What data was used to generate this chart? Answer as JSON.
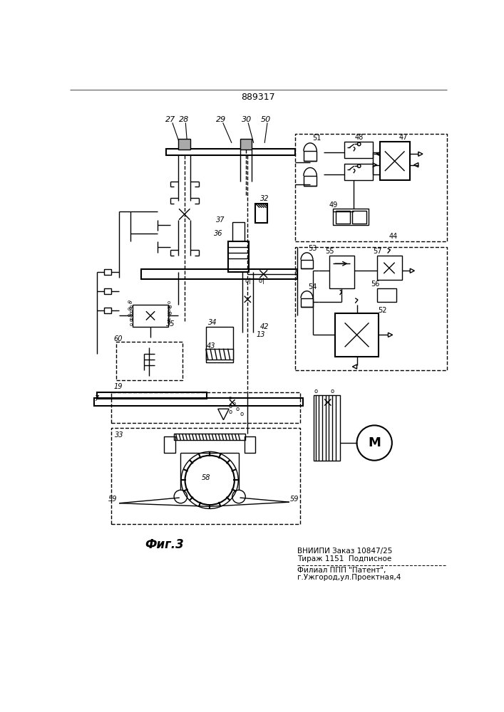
{
  "title": "889317",
  "fig_label": "Фиг.3",
  "bottom_text_line1": "ВНИИПИ Заказ 10847/25",
  "bottom_text_line2": "Тираж 1151  Подписное",
  "bottom_text_line3": "Филиал ППП \"Патент\",",
  "bottom_text_line4": "г.Ужгород,ул.Проектная,4",
  "bg_color": "#ffffff",
  "line_color": "#000000"
}
